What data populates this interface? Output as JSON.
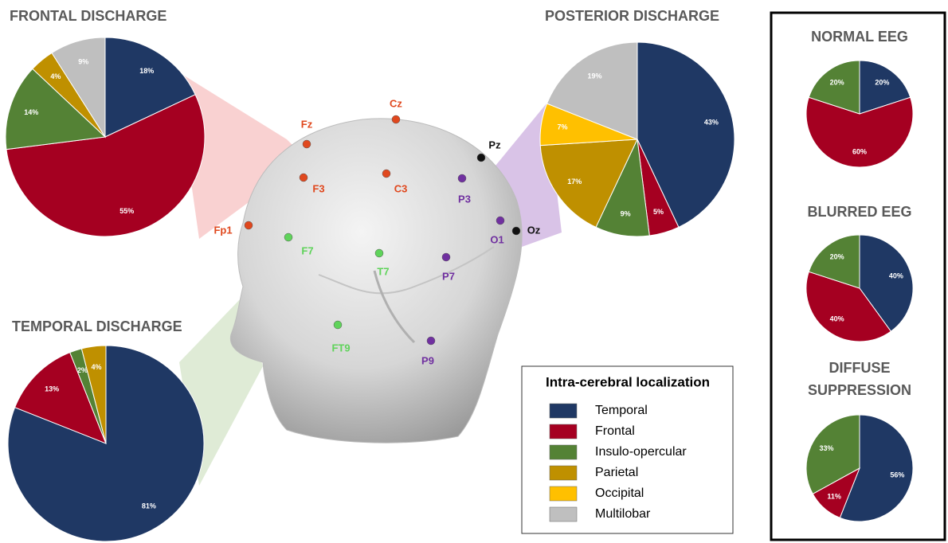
{
  "chart_data": [
    {
      "type": "pie",
      "title": "FRONTAL DISCHARGE",
      "categories": [
        "Temporal",
        "Frontal",
        "Insulo-opercular",
        "Parietal",
        "Multilobar"
      ],
      "values": [
        18,
        55,
        14,
        4,
        9
      ],
      "value_labels": [
        "18%",
        "55%",
        "14%",
        "4%",
        "9%"
      ],
      "colors": [
        "#1f3864",
        "#a50021",
        "#548235",
        "#bf9000",
        "#bfbfbf"
      ]
    },
    {
      "type": "pie",
      "title": "POSTERIOR DISCHARGE",
      "categories": [
        "Temporal",
        "Frontal",
        "Insulo-opercular",
        "Parietal",
        "Occipital",
        "Multilobar"
      ],
      "values": [
        43,
        5,
        9,
        17,
        7,
        19
      ],
      "value_labels": [
        "43%",
        "5%",
        "9%",
        "17%",
        "7%",
        "19%"
      ],
      "colors": [
        "#1f3864",
        "#a50021",
        "#548235",
        "#bf9000",
        "#ffc000",
        "#bfbfbf"
      ]
    },
    {
      "type": "pie",
      "title": "TEMPORAL DISCHARGE",
      "categories": [
        "Temporal",
        "Frontal",
        "Insulo-opercular",
        "Parietal"
      ],
      "values": [
        81,
        13,
        2,
        4
      ],
      "value_labels": [
        "81%",
        "13%",
        "2%",
        "4%"
      ],
      "colors": [
        "#1f3864",
        "#a50021",
        "#548235",
        "#bf9000"
      ]
    },
    {
      "type": "pie",
      "title": "NORMAL EEG",
      "categories": [
        "Temporal",
        "Frontal",
        "Insulo-opercular"
      ],
      "values": [
        20,
        60,
        20
      ],
      "value_labels": [
        "20%",
        "60%",
        "20%"
      ],
      "colors": [
        "#1f3864",
        "#a50021",
        "#548235"
      ]
    },
    {
      "type": "pie",
      "title": "BLURRED EEG",
      "categories": [
        "Temporal",
        "Frontal",
        "Insulo-opercular"
      ],
      "values": [
        40,
        40,
        20
      ],
      "value_labels": [
        "40%",
        "40%",
        "20%"
      ],
      "colors": [
        "#1f3864",
        "#a50021",
        "#548235"
      ]
    },
    {
      "type": "pie",
      "title": "DIFFUSE SUPPRESSION",
      "categories": [
        "Temporal",
        "Frontal",
        "Insulo-opercular"
      ],
      "values": [
        56,
        11,
        33
      ],
      "value_labels": [
        "56%",
        "11%",
        "33%"
      ],
      "colors": [
        "#1f3864",
        "#a50021",
        "#548235"
      ]
    }
  ],
  "legend": {
    "title": "Intra-cerebral localization",
    "items": [
      {
        "name": "Temporal",
        "color": "#1f3864"
      },
      {
        "name": "Frontal",
        "color": "#a50021"
      },
      {
        "name": "Insulo-opercular",
        "color": "#548235"
      },
      {
        "name": "Parietal",
        "color": "#bf9000"
      },
      {
        "name": "Occipital",
        "color": "#ffc000"
      },
      {
        "name": "Multilobar",
        "color": "#bfbfbf"
      }
    ]
  },
  "head": {
    "electrodes": [
      {
        "label": "Cz",
        "color": "#e0481e"
      },
      {
        "label": "Fz",
        "color": "#e0481e"
      },
      {
        "label": "F3",
        "color": "#e0481e"
      },
      {
        "label": "C3",
        "color": "#e0481e"
      },
      {
        "label": "Fp1",
        "color": "#e0481e"
      },
      {
        "label": "Pz",
        "color": "#111111"
      },
      {
        "label": "Oz",
        "color": "#111111"
      },
      {
        "label": "P3",
        "color": "#7030a0"
      },
      {
        "label": "O1",
        "color": "#7030a0"
      },
      {
        "label": "P7",
        "color": "#7030a0"
      },
      {
        "label": "P9",
        "color": "#7030a0"
      },
      {
        "label": "F7",
        "color": "#5fd35a"
      },
      {
        "label": "T7",
        "color": "#5fd35a"
      },
      {
        "label": "FT9",
        "color": "#5fd35a"
      }
    ]
  }
}
